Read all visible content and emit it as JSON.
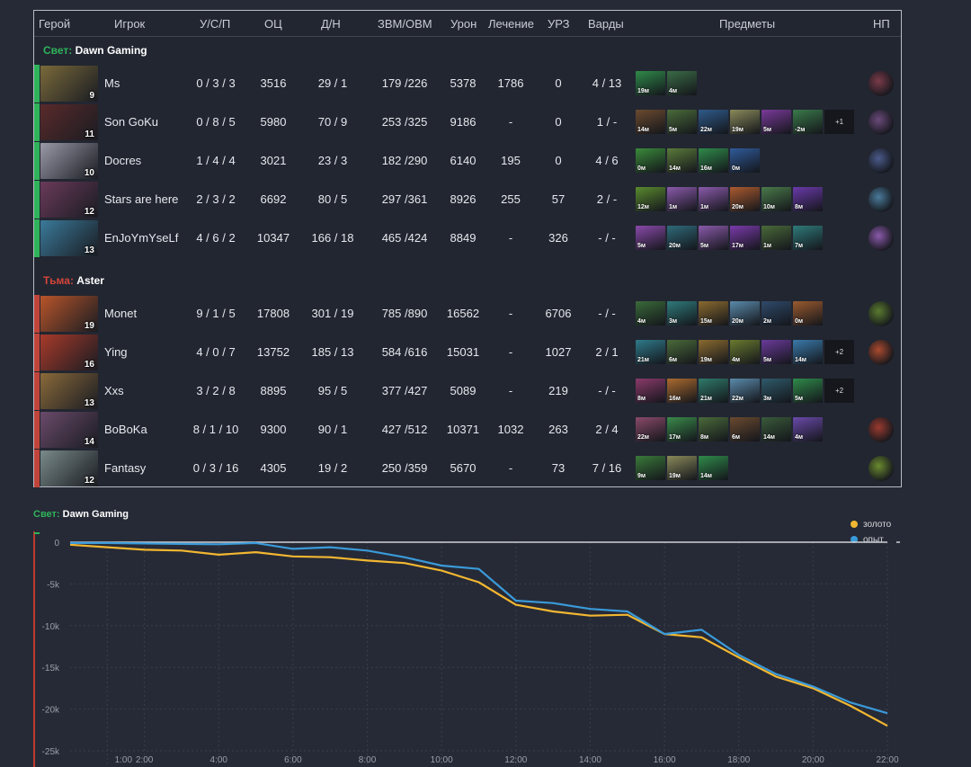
{
  "headers": {
    "hero": "Герой",
    "player": "Игрок",
    "kda": "У/С/П",
    "nw": "ОЦ",
    "lhdn": "Д/Н",
    "gpmxpm": "ЗВМ/ОВМ",
    "damage": "Урон",
    "healing": "Лечение",
    "building": "УРЗ",
    "wards": "Варды",
    "items": "Предметы",
    "neutral": "НП"
  },
  "radiant": {
    "side_label": "Свет:",
    "team_name": "Dawn Gaming",
    "stripe_color": "#2fb35a",
    "players": [
      {
        "level": "9",
        "name": "Ms",
        "kda": "0 / 3 / 3",
        "nw": "3516",
        "lhdn": "29 / 1",
        "gpmxpm": "179 /226",
        "damage": "5378",
        "healing": "1786",
        "building": "0",
        "wards": "4 / 13",
        "items": [
          {
            "t": "19м",
            "c": "#2f8a4a"
          },
          {
            "t": "4м",
            "c": "#3a6b45"
          }
        ],
        "extra": "",
        "neutral_icon": "neutral-red-icon",
        "neutral_color": "#7a3b4a"
      },
      {
        "level": "11",
        "name": "Son GoKu",
        "kda": "0 / 8 / 5",
        "nw": "5980",
        "lhdn": "70 / 9",
        "gpmxpm": "253 /325",
        "damage": "9186",
        "healing": "-",
        "building": "0",
        "wards": "1 / -",
        "items": [
          {
            "t": "14м",
            "c": "#6b4a2f"
          },
          {
            "t": "5м",
            "c": "#4a6b3a"
          },
          {
            "t": "22м",
            "c": "#2f5a8a"
          },
          {
            "t": "19м",
            "c": "#8a8a5a"
          },
          {
            "t": "5м",
            "c": "#7a3a9a"
          },
          {
            "t": "-2м",
            "c": "#3a7a4a"
          }
        ],
        "extra": "+1",
        "neutral_icon": "neutral-purple-icon",
        "neutral_color": "#6a4a7a"
      },
      {
        "level": "10",
        "name": "Docres",
        "kda": "1 / 4 / 4",
        "nw": "3021",
        "lhdn": "23 / 3",
        "gpmxpm": "182 /290",
        "damage": "6140",
        "healing": "195",
        "building": "0",
        "wards": "4 / 6",
        "items": [
          {
            "t": "0м",
            "c": "#3a8a3a"
          },
          {
            "t": "14м",
            "c": "#5a7a3a"
          },
          {
            "t": "16м",
            "c": "#2f8a4a"
          },
          {
            "t": "0м",
            "c": "#2f5a9a"
          }
        ],
        "extra": "",
        "neutral_icon": "neutral-blue-icon",
        "neutral_color": "#4a5a8a"
      },
      {
        "level": "12",
        "name": "Stars are here",
        "kda": "2 / 3 / 2",
        "nw": "6692",
        "lhdn": "80 / 5",
        "gpmxpm": "297 /361",
        "damage": "8926",
        "healing": "255",
        "building": "57",
        "wards": "2 / -",
        "items": [
          {
            "t": "12м",
            "c": "#5a8a2f"
          },
          {
            "t": "1м",
            "c": "#8a5aaa"
          },
          {
            "t": "1м",
            "c": "#8a5aaa"
          },
          {
            "t": "20м",
            "c": "#aa5a2f"
          },
          {
            "t": "10м",
            "c": "#4a7a4a"
          },
          {
            "t": "8м",
            "c": "#6a3aaa"
          }
        ],
        "extra": "",
        "neutral_icon": "neutral-cyan-icon",
        "neutral_color": "#4a7a9a"
      },
      {
        "level": "13",
        "name": "EnJoYmYseLf",
        "kda": "4 / 6 / 2",
        "nw": "10347",
        "lhdn": "166 / 18",
        "gpmxpm": "465 /424",
        "damage": "8849",
        "healing": "-",
        "building": "326",
        "wards": "- / -",
        "items": [
          {
            "t": "5м",
            "c": "#8a4aaa"
          },
          {
            "t": "20м",
            "c": "#2f6a7a"
          },
          {
            "t": "5м",
            "c": "#8a5aaa"
          },
          {
            "t": "17м",
            "c": "#7a3aaa"
          },
          {
            "t": "1м",
            "c": "#4a6a3a"
          },
          {
            "t": "7м",
            "c": "#2f7a7a"
          }
        ],
        "extra": "",
        "neutral_icon": "neutral-violet-icon",
        "neutral_color": "#8a5aaa"
      }
    ]
  },
  "dire": {
    "side_label": "Тьма:",
    "team_name": "Aster",
    "stripe_color": "#c0443a",
    "players": [
      {
        "level": "19",
        "name": "Monet",
        "kda": "9 / 1 / 5",
        "nw": "17808",
        "lhdn": "301 / 19",
        "gpmxpm": "785 /890",
        "damage": "16562",
        "healing": "-",
        "building": "6706",
        "wards": "- / -",
        "items": [
          {
            "t": "4м",
            "c": "#3a6a3a"
          },
          {
            "t": "3м",
            "c": "#2f7a7a"
          },
          {
            "t": "15м",
            "c": "#8a6a2f"
          },
          {
            "t": "20м",
            "c": "#5a8aaa"
          },
          {
            "t": "2м",
            "c": "#2f4a6a"
          },
          {
            "t": "0м",
            "c": "#9a5a2f"
          }
        ],
        "extra": "",
        "neutral_icon": "neutral-green-icon",
        "neutral_color": "#5a7a2f"
      },
      {
        "level": "16",
        "name": "Ying",
        "kda": "4 / 0 / 7",
        "nw": "13752",
        "lhdn": "185 / 13",
        "gpmxpm": "584 /616",
        "damage": "15031",
        "healing": "-",
        "building": "1027",
        "wards": "2 / 1",
        "items": [
          {
            "t": "21м",
            "c": "#2f7a8a"
          },
          {
            "t": "6м",
            "c": "#4a6a3a"
          },
          {
            "t": "19м",
            "c": "#8a6a2f"
          },
          {
            "t": "4м",
            "c": "#6a7a2f"
          },
          {
            "t": "5м",
            "c": "#6a3a9a"
          },
          {
            "t": "14м",
            "c": "#3a7aaa"
          }
        ],
        "extra": "+2",
        "neutral_icon": "neutral-orange-icon",
        "neutral_color": "#aa4a2f"
      },
      {
        "level": "13",
        "name": "Xxs",
        "kda": "3 / 2 / 8",
        "nw": "8895",
        "lhdn": "95 / 5",
        "gpmxpm": "377 /427",
        "damage": "5089",
        "healing": "-",
        "building": "219",
        "wards": "- / -",
        "items": [
          {
            "t": "8м",
            "c": "#8a3a6a"
          },
          {
            "t": "16м",
            "c": "#aa6a2f"
          },
          {
            "t": "21м",
            "c": "#2f7a6a"
          },
          {
            "t": "22м",
            "c": "#5a8aaa"
          },
          {
            "t": "3м",
            "c": "#2f5a6a"
          },
          {
            "t": "5м",
            "c": "#2f8a4a"
          }
        ],
        "extra": "+2",
        "neutral_icon": "",
        "neutral_color": ""
      },
      {
        "level": "14",
        "name": "BoBoKa",
        "kda": "8 / 1 / 10",
        "nw": "9300",
        "lhdn": "90 / 1",
        "gpmxpm": "427 /512",
        "damage": "10371",
        "healing": "1032",
        "building": "263",
        "wards": "2 / 4",
        "items": [
          {
            "t": "22м",
            "c": "#8a4a6a"
          },
          {
            "t": "17м",
            "c": "#3a8a4a"
          },
          {
            "t": "8м",
            "c": "#4a6a3a"
          },
          {
            "t": "6м",
            "c": "#6a4a2f"
          },
          {
            "t": "14м",
            "c": "#3a5a3a"
          },
          {
            "t": "4м",
            "c": "#6a4aaa"
          }
        ],
        "extra": "",
        "neutral_icon": "neutral-fire-icon",
        "neutral_color": "#9a3a2f"
      },
      {
        "level": "12",
        "name": "Fantasy",
        "kda": "0 / 3 / 16",
        "nw": "4305",
        "lhdn": "19 / 2",
        "gpmxpm": "250 /359",
        "damage": "5670",
        "healing": "-",
        "building": "73",
        "wards": "7 / 16",
        "items": [
          {
            "t": "9м",
            "c": "#3a7a3a"
          },
          {
            "t": "19м",
            "c": "#8a8a5a"
          },
          {
            "t": "14м",
            "c": "#2f8a4a"
          }
        ],
        "extra": "",
        "neutral_icon": "neutral-lime-icon",
        "neutral_color": "#6a8a2f"
      }
    ]
  },
  "chart": {
    "side_label": "Свет:",
    "team_name": "Dawn Gaming"
  },
  "chart_data": {
    "type": "line",
    "ylim": [
      -25000,
      0
    ],
    "xlim": [
      0,
      22
    ],
    "yticks": [
      {
        "v": 0,
        "label": "0"
      },
      {
        "v": -5000,
        "label": "-5k"
      },
      {
        "v": -10000,
        "label": "-10k"
      },
      {
        "v": -15000,
        "label": "-15k"
      },
      {
        "v": -20000,
        "label": "-20k"
      },
      {
        "v": -25000,
        "label": "-25k"
      }
    ],
    "xticks": [
      {
        "v": 1,
        "label": "1:00"
      },
      {
        "v": 2,
        "label": "2:00"
      },
      {
        "v": 4,
        "label": "4:00"
      },
      {
        "v": 6,
        "label": "6:00"
      },
      {
        "v": 8,
        "label": "8:00"
      },
      {
        "v": 10,
        "label": "10:00"
      },
      {
        "v": 12,
        "label": "12:00"
      },
      {
        "v": 14,
        "label": "14:00"
      },
      {
        "v": 16,
        "label": "16:00"
      },
      {
        "v": 18,
        "label": "18:00"
      },
      {
        "v": 20,
        "label": "20:00"
      },
      {
        "v": 22,
        "label": "22:00"
      }
    ],
    "series": [
      {
        "name": "золото",
        "color": "#f2b731",
        "points": [
          [
            0,
            -300
          ],
          [
            1,
            -600
          ],
          [
            2,
            -900
          ],
          [
            3,
            -1000
          ],
          [
            4,
            -1500
          ],
          [
            5,
            -1200
          ],
          [
            6,
            -1700
          ],
          [
            7,
            -1800
          ],
          [
            8,
            -2200
          ],
          [
            9,
            -2500
          ],
          [
            10,
            -3400
          ],
          [
            11,
            -4800
          ],
          [
            12,
            -7500
          ],
          [
            13,
            -8300
          ],
          [
            14,
            -8800
          ],
          [
            15,
            -8700
          ],
          [
            16,
            -11000
          ],
          [
            17,
            -11400
          ],
          [
            18,
            -13800
          ],
          [
            19,
            -16100
          ],
          [
            20,
            -17500
          ],
          [
            21,
            -19600
          ],
          [
            22,
            -22000
          ]
        ]
      },
      {
        "name": "опыт",
        "color": "#3a9ad9",
        "points": [
          [
            0,
            -100
          ],
          [
            1,
            -100
          ],
          [
            2,
            -150
          ],
          [
            3,
            -200
          ],
          [
            4,
            -250
          ],
          [
            5,
            -100
          ],
          [
            6,
            -800
          ],
          [
            7,
            -600
          ],
          [
            8,
            -1000
          ],
          [
            9,
            -1800
          ],
          [
            10,
            -2800
          ],
          [
            11,
            -3200
          ],
          [
            12,
            -7000
          ],
          [
            13,
            -7300
          ],
          [
            14,
            -8000
          ],
          [
            15,
            -8300
          ],
          [
            16,
            -11000
          ],
          [
            17,
            -10500
          ],
          [
            18,
            -13500
          ],
          [
            19,
            -15800
          ],
          [
            20,
            -17300
          ],
          [
            21,
            -19200
          ],
          [
            22,
            -20500
          ]
        ]
      }
    ],
    "zero_line_color": "#cfd2d6",
    "axis_color": "#c0392b"
  }
}
